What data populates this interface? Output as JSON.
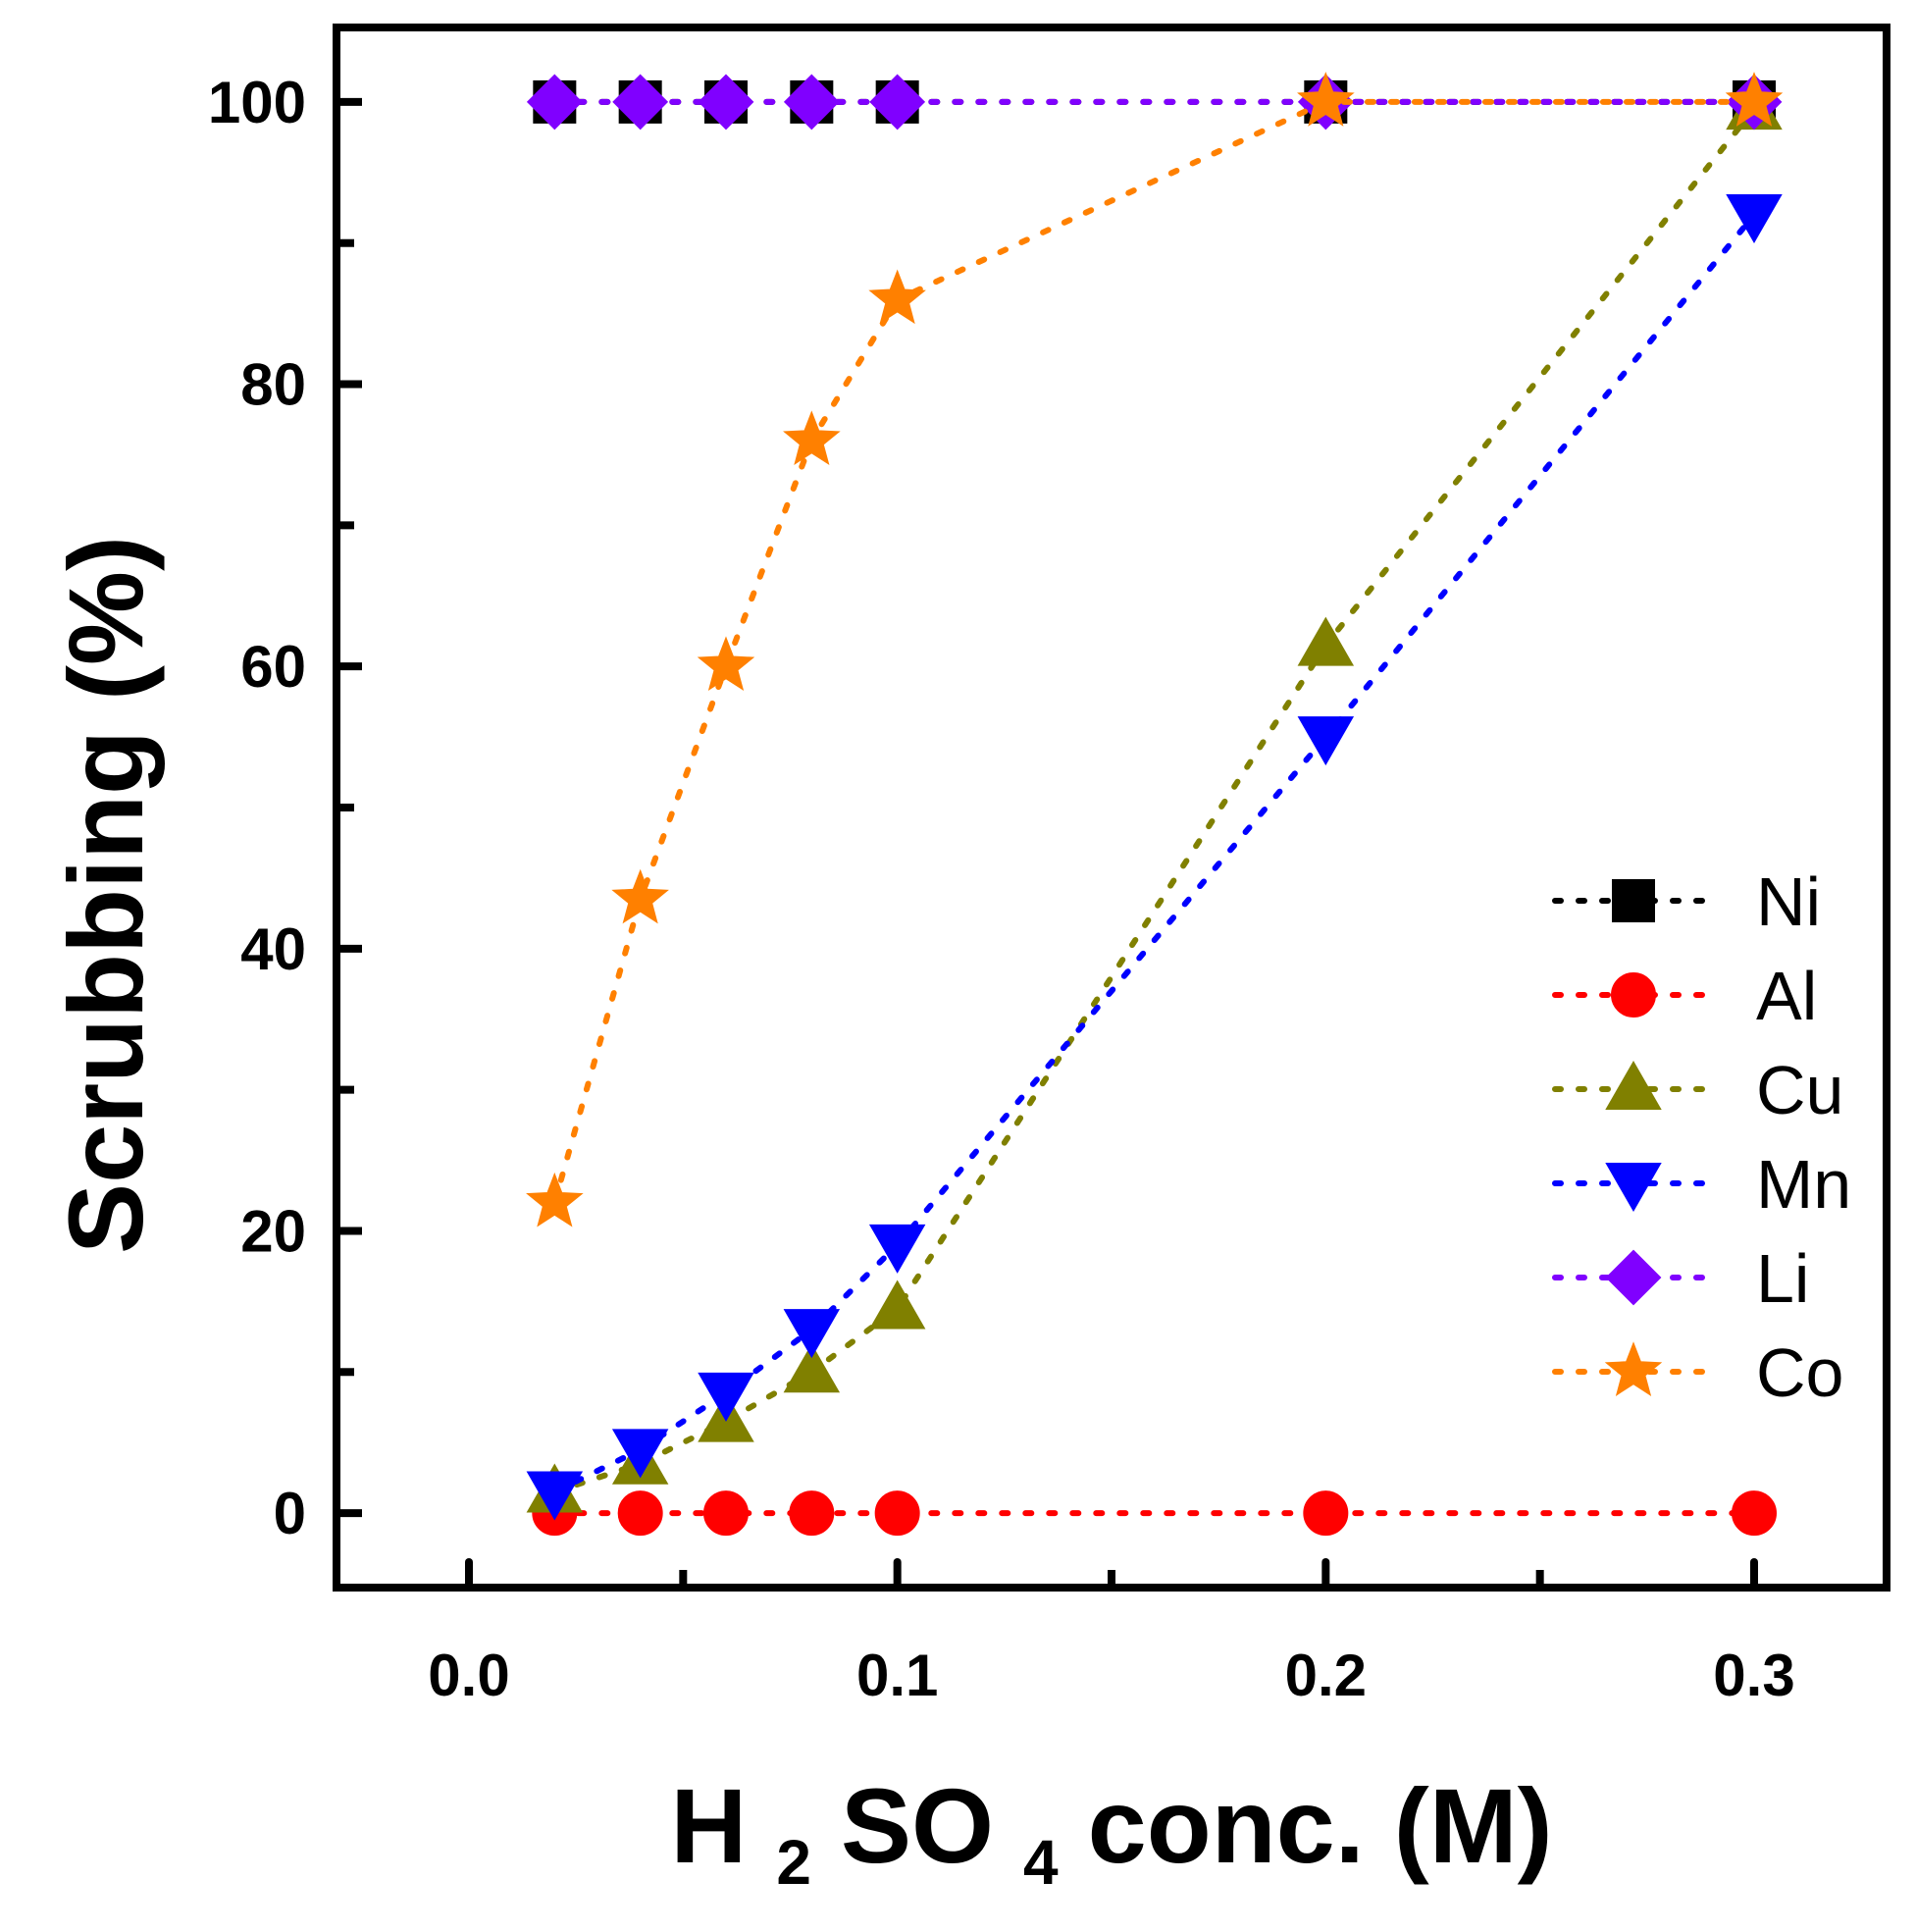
{
  "chart_data": {
    "type": "line",
    "title": "",
    "xlabel": {
      "main": "H",
      "sub1": "2",
      "mid": "SO",
      "sub2": "4",
      "tail": " conc. (M)"
    },
    "ylabel": "Scrubbing (%)",
    "xlim": [
      -0.03,
      0.33
    ],
    "ylim": [
      -5,
      105
    ],
    "x_ticks": [
      0.0,
      0.1,
      0.2,
      0.3
    ],
    "x_tick_labels": [
      "0.0",
      "0.1",
      "0.2",
      "0.3"
    ],
    "y_ticks": [
      0,
      20,
      40,
      60,
      80,
      100
    ],
    "y_tick_labels": [
      "0",
      "20",
      "40",
      "60",
      "80",
      "100"
    ],
    "x_minor_ticks": [
      0.05,
      0.15,
      0.25
    ],
    "y_minor_ticks": [
      10,
      30,
      50,
      70,
      90
    ],
    "grid": false,
    "legend_position": "right",
    "line_style": "dotted",
    "x": [
      0.02,
      0.04,
      0.06,
      0.08,
      0.1,
      0.2,
      0.3
    ],
    "series": [
      {
        "name": "Ni",
        "color": "#000000",
        "marker": "square",
        "values": [
          100,
          100,
          100,
          100,
          100,
          100,
          100
        ]
      },
      {
        "name": "Al",
        "color": "#ff0000",
        "marker": "circle",
        "values": [
          0,
          0,
          0,
          0,
          0,
          0,
          0
        ]
      },
      {
        "name": "Cu",
        "color": "#808000",
        "marker": "triangle-up",
        "values": [
          1.5,
          3.5,
          6.5,
          10,
          14.5,
          61.5,
          99.5
        ]
      },
      {
        "name": "Mn",
        "color": "#0000ff",
        "marker": "triangle-down",
        "values": [
          1.5,
          4.5,
          8.5,
          13,
          19,
          55,
          92
        ]
      },
      {
        "name": "Li",
        "color": "#8000ff",
        "marker": "diamond",
        "values": [
          100,
          100,
          100,
          100,
          100,
          100,
          100
        ]
      },
      {
        "name": "Co",
        "color": "#ff8000",
        "marker": "star",
        "values": [
          22,
          43.5,
          60,
          76,
          86,
          100,
          100
        ]
      }
    ]
  }
}
